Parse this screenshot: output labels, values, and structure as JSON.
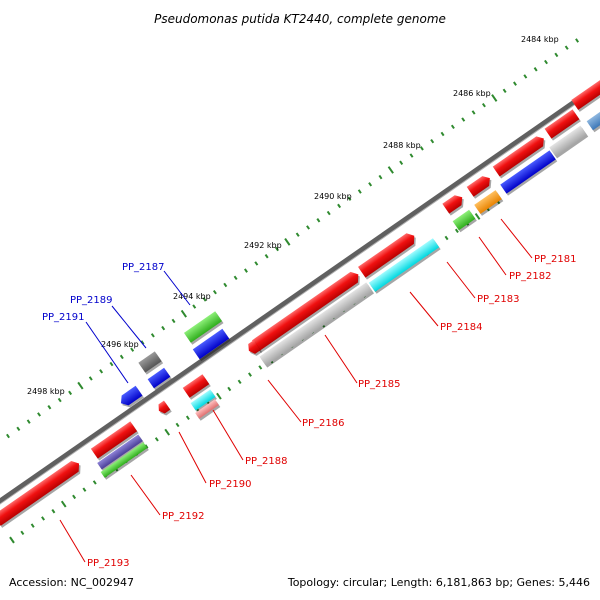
{
  "title": "Pseudomonas putida KT2440, complete genome",
  "footer": {
    "accession": "Accession: NC_002947",
    "summary": "Topology: circular; Length: 6,181,863 bp; Genes: 5,446"
  },
  "scale_labels": [
    "2484 kbp",
    "2486 kbp",
    "2488 kbp",
    "2490 kbp",
    "2492 kbp",
    "2494 kbp",
    "2496 kbp",
    "2498 kbp"
  ],
  "gene_labels": [
    {
      "text": "PP_2181",
      "color": "red"
    },
    {
      "text": "PP_2182",
      "color": "red"
    },
    {
      "text": "PP_2183",
      "color": "red"
    },
    {
      "text": "PP_2184",
      "color": "red"
    },
    {
      "text": "PP_2185",
      "color": "red"
    },
    {
      "text": "PP_2186",
      "color": "red"
    },
    {
      "text": "PP_2187",
      "color": "blue"
    },
    {
      "text": "PP_2188",
      "color": "red"
    },
    {
      "text": "PP_2189",
      "color": "blue"
    },
    {
      "text": "PP_2190",
      "color": "red"
    },
    {
      "text": "PP_2191",
      "color": "blue"
    },
    {
      "text": "PP_2192",
      "color": "red"
    },
    {
      "text": "PP_2193",
      "color": "red"
    }
  ],
  "colors": {
    "cds_red": "#ee1111",
    "backbone": "#666666",
    "ticks": "#2f8a2f",
    "label_red": "#e00000",
    "label_blue": "#0000cc"
  }
}
